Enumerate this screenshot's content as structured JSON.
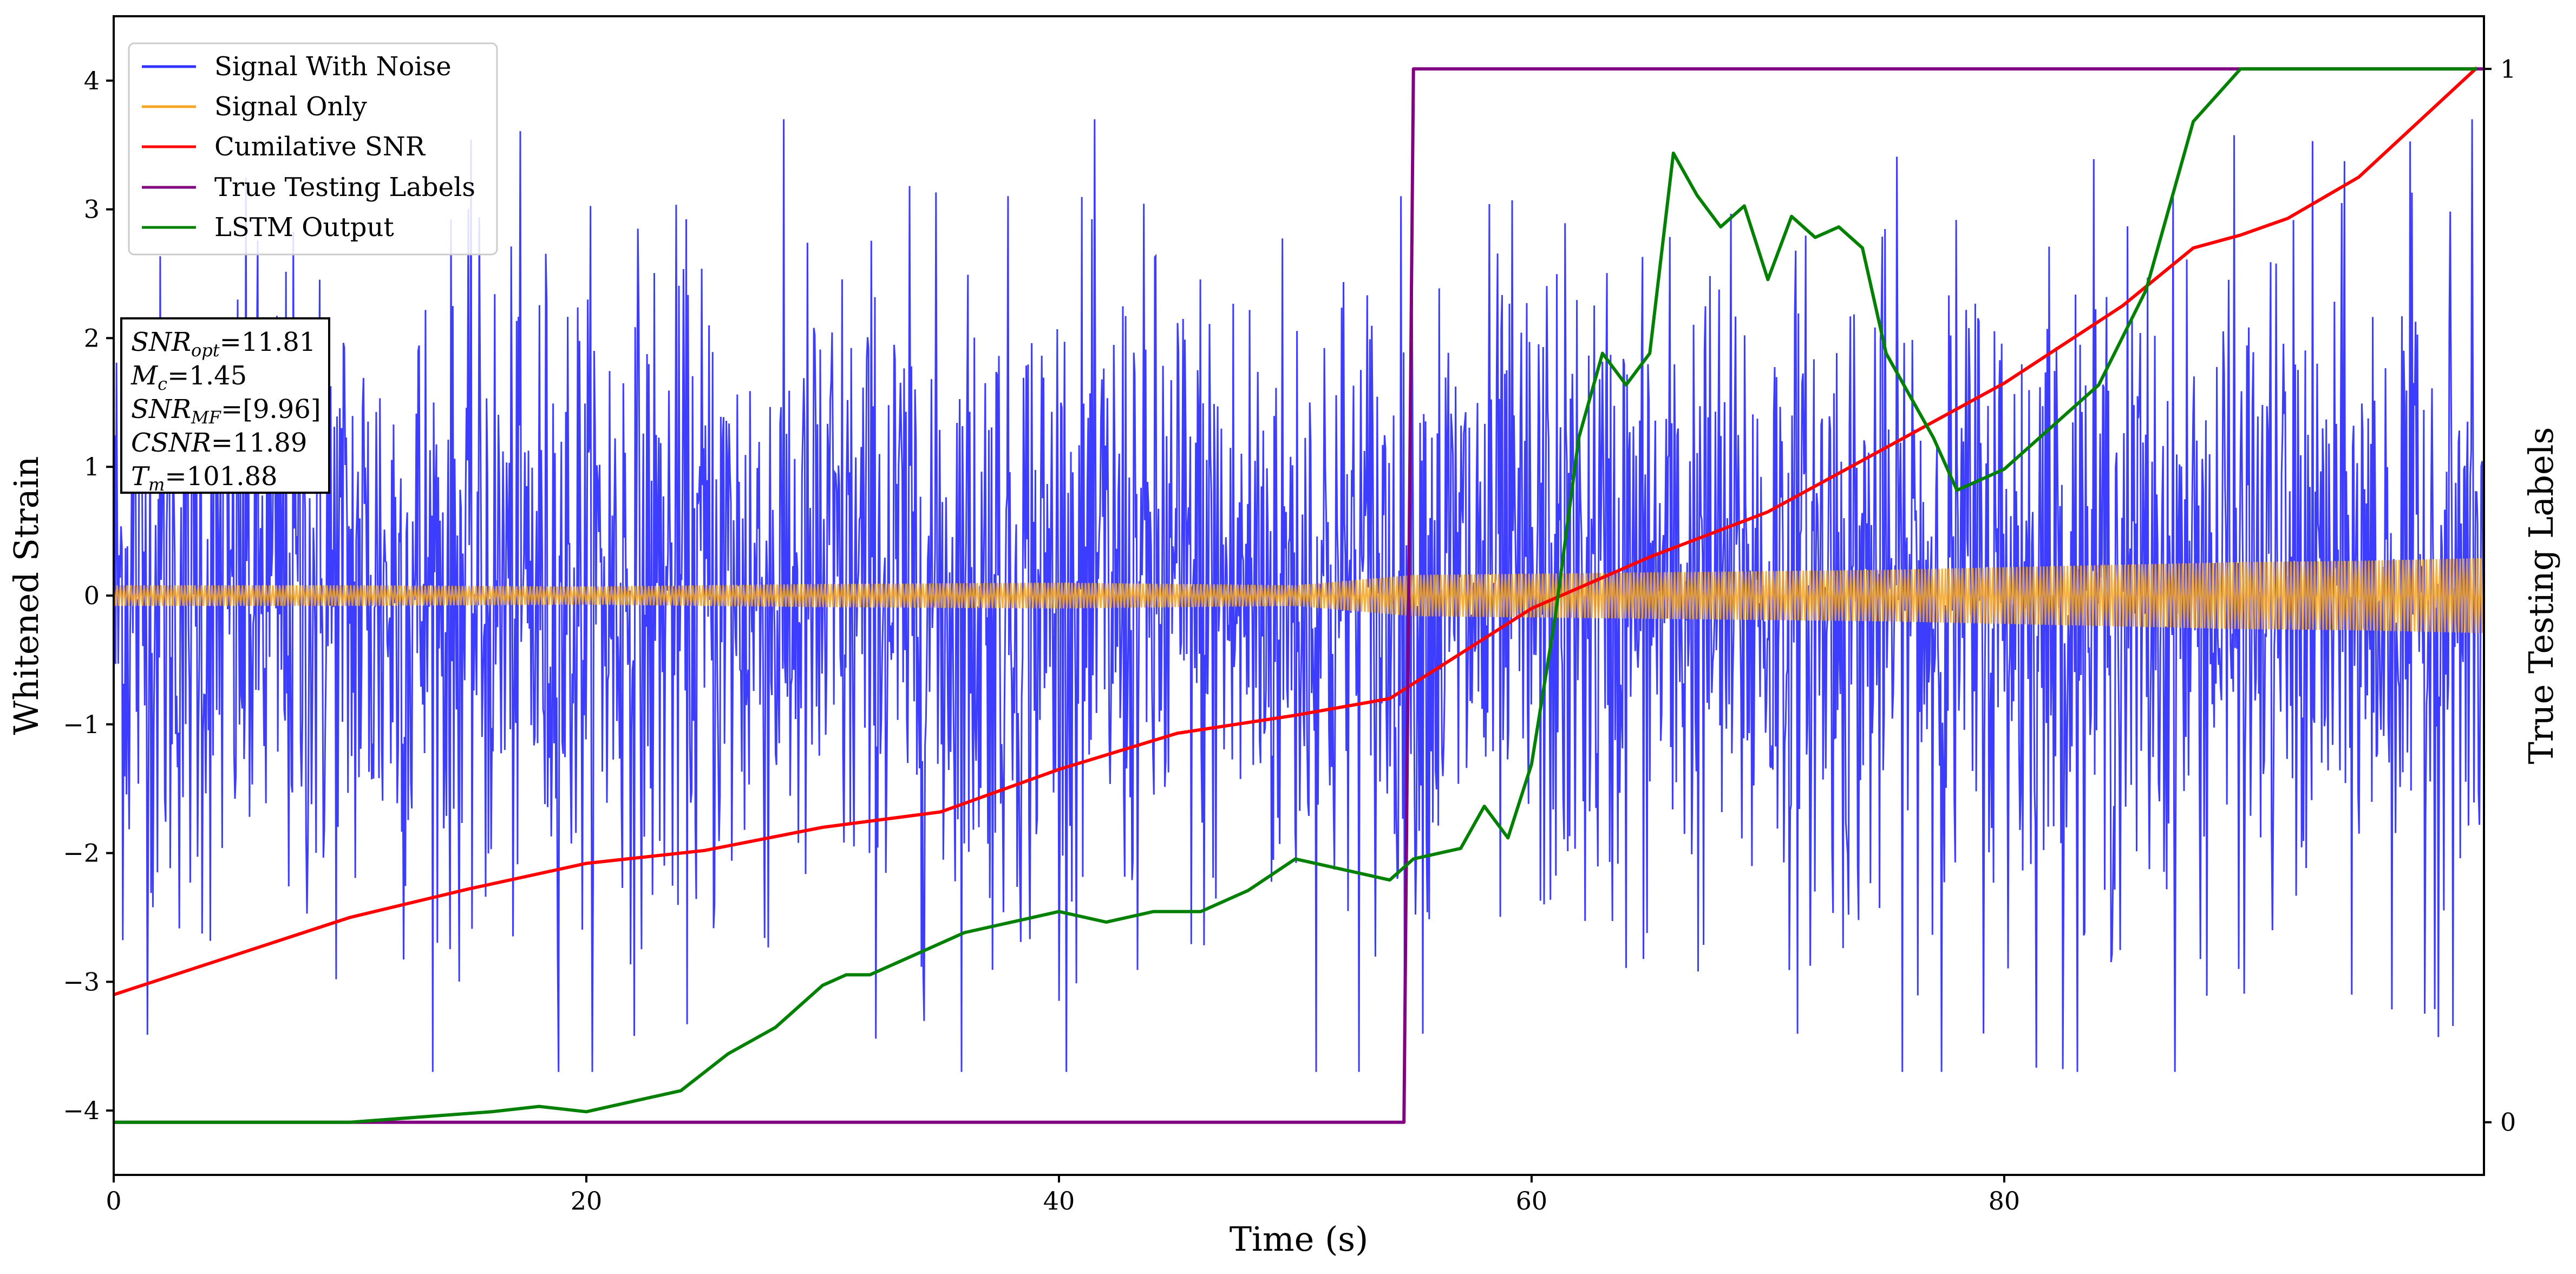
{
  "chart_data": {
    "type": "line",
    "xlabel": "Time (s)",
    "ylabel": "Whitened Strain",
    "y2label": "True Testing Labels",
    "xlim": [
      0,
      100.3
    ],
    "ylim": [
      -4.5,
      4.5
    ],
    "y2lim": [
      -0.05,
      1.05
    ],
    "x_ticks": [
      0,
      20,
      40,
      60,
      80
    ],
    "y_ticks": [
      -4,
      -3,
      -2,
      -1,
      0,
      1,
      2,
      3,
      4
    ],
    "y2_ticks": [
      0,
      1
    ],
    "grid": false,
    "legend_position": "top-left",
    "annotation_box_position": "left",
    "annotation": {
      "snr_opt": {
        "label": "SNR",
        "sub": "opt",
        "value": "=11.81"
      },
      "mc": {
        "label": "M",
        "sub": "c",
        "value": "=1.45"
      },
      "snr_mf": {
        "label": "SNR",
        "sub": "MF",
        "value": "=[9.96]"
      },
      "csnr": {
        "label": "CSNR",
        "value": "=11.89"
      },
      "tm": {
        "label": "T",
        "sub": "m",
        "value": "=101.88"
      }
    },
    "series": [
      {
        "name": "Signal With Noise",
        "color": "#3333ff",
        "axis": "left",
        "note": "dense noise spanning about ±2.5 with spikes to about ±3.7",
        "x_range": [
          0,
          100.3
        ],
        "typical_amplitude": 1.3,
        "peak_amplitude": 3.7
      },
      {
        "name": "Signal Only",
        "color": "#f5a623",
        "axis": "left",
        "x": [
          0,
          10,
          20,
          30,
          40,
          45,
          50,
          55,
          60,
          65,
          70,
          75,
          80,
          85,
          90,
          95,
          100
        ],
        "amplitude": [
          0.08,
          0.08,
          0.07,
          0.09,
          0.1,
          0.09,
          0.08,
          0.16,
          0.17,
          0.18,
          0.19,
          0.2,
          0.22,
          0.24,
          0.26,
          0.27,
          0.29
        ]
      },
      {
        "name": "Cumilative SNR",
        "color": "#ff0000",
        "axis": "left",
        "x": [
          0,
          5,
          10,
          15,
          20,
          25,
          30,
          35,
          40,
          45,
          50,
          54,
          60,
          65,
          70,
          75,
          80,
          85,
          88,
          90,
          92,
          95,
          100
        ],
        "y": [
          -3.1,
          -2.8,
          -2.5,
          -2.28,
          -2.08,
          -1.98,
          -1.8,
          -1.68,
          -1.35,
          -1.07,
          -0.93,
          -0.8,
          -0.1,
          0.3,
          0.65,
          1.15,
          1.65,
          2.25,
          2.7,
          2.8,
          2.93,
          3.25,
          4.1
        ]
      },
      {
        "name": "True Testing Labels",
        "color": "#800080",
        "axis": "right",
        "x": [
          0,
          54.6,
          55.0,
          100.3
        ],
        "y": [
          0,
          0,
          1,
          1
        ]
      },
      {
        "name": "LSTM Output",
        "color": "#008000",
        "axis": "right",
        "x": [
          0,
          10,
          13,
          16,
          18,
          20,
          22,
          24,
          26,
          28,
          30,
          31,
          32,
          34,
          35,
          36,
          38,
          40,
          42,
          44,
          46,
          48,
          50,
          52,
          54,
          55,
          57,
          58,
          59,
          60,
          61,
          62,
          63,
          64,
          65,
          66,
          67,
          68,
          69,
          70,
          71,
          72,
          73,
          74,
          75,
          76,
          77,
          78,
          79,
          80,
          82,
          84,
          86,
          88,
          90,
          92,
          95,
          100
        ],
        "y": [
          0,
          0,
          0.005,
          0.01,
          0.015,
          0.01,
          0.02,
          0.03,
          0.065,
          0.09,
          0.13,
          0.14,
          0.14,
          0.16,
          0.17,
          0.18,
          0.19,
          0.2,
          0.19,
          0.2,
          0.2,
          0.22,
          0.25,
          0.24,
          0.23,
          0.25,
          0.26,
          0.3,
          0.27,
          0.34,
          0.48,
          0.65,
          0.73,
          0.7,
          0.73,
          0.92,
          0.88,
          0.85,
          0.87,
          0.8,
          0.86,
          0.84,
          0.85,
          0.83,
          0.73,
          0.69,
          0.65,
          0.6,
          0.61,
          0.62,
          0.66,
          0.7,
          0.79,
          0.95,
          1,
          1,
          1,
          1
        ]
      }
    ]
  }
}
